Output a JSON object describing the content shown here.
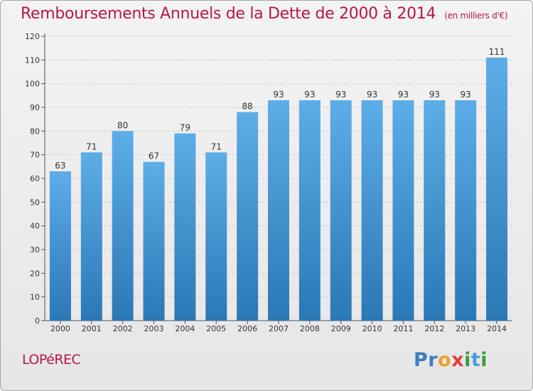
{
  "title": "Remboursements Annuels de la Dette de 2000 à 2014",
  "subtitle": "(en milliers d'€)",
  "town": "LOPéREC",
  "brand": {
    "letters": [
      "P",
      "r",
      "o",
      "x",
      "i",
      "t",
      "i"
    ],
    "colors": [
      "#3b7dc0",
      "#3b7dc0",
      "#e9a12c",
      "#e43d3d",
      "#3f9a3c",
      "#4a9ad6",
      "#3f9a3c"
    ]
  },
  "colors": {
    "title": "#b5174b",
    "bar_light": "#5dade8",
    "bar_dark": "#2a78b5"
  },
  "chart_data": {
    "type": "bar",
    "title": "Remboursements Annuels de la Dette de 2000 à 2014",
    "subtitle": "(en milliers d'€)",
    "categories": [
      "2000",
      "2001",
      "2002",
      "2003",
      "2004",
      "2005",
      "2006",
      "2007",
      "2008",
      "2009",
      "2010",
      "2011",
      "2012",
      "2013",
      "2014"
    ],
    "values": [
      63,
      71,
      80,
      67,
      79,
      71,
      88,
      93,
      93,
      93,
      93,
      93,
      93,
      93,
      111
    ],
    "ylim": [
      0,
      120
    ],
    "yticks": [
      0,
      10,
      20,
      30,
      40,
      50,
      60,
      70,
      80,
      90,
      100,
      110,
      120
    ],
    "grid": true,
    "data_labels": true,
    "legend": "none"
  }
}
